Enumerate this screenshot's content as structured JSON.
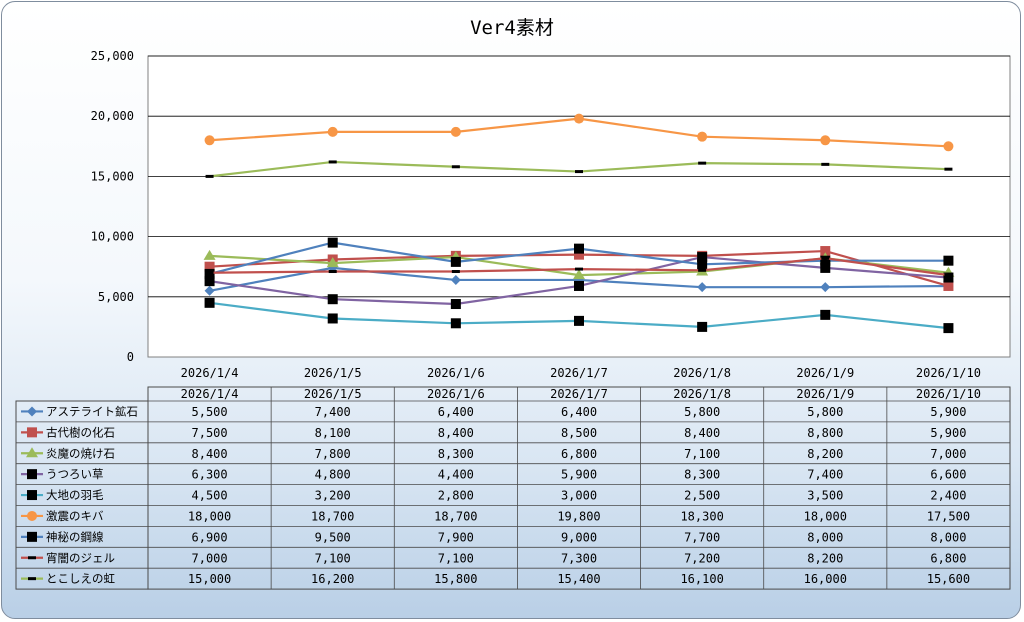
{
  "chart_data": {
    "type": "line",
    "title": "Ver4素材",
    "xlabel": "",
    "ylabel": "",
    "ylim": [
      0,
      25000
    ],
    "yticks": [
      "0",
      "5,000",
      "10,000",
      "15,000",
      "20,000",
      "25,000"
    ],
    "categories": [
      "2026/1/4",
      "2026/1/5",
      "2026/1/6",
      "2026/1/7",
      "2026/1/8",
      "2026/1/9",
      "2026/1/10"
    ],
    "grid": true,
    "legend": "data-table",
    "series": [
      {
        "name": "アステライト鉱石",
        "color": "#4f81bd",
        "marker": "diamond",
        "values": [
          5500,
          7400,
          6400,
          6400,
          5800,
          5800,
          5900
        ],
        "labels": [
          "5,500",
          "7,400",
          "6,400",
          "6,400",
          "5,800",
          "5,800",
          "5,900"
        ]
      },
      {
        "name": "古代樹の化石",
        "color": "#c0504d",
        "marker": "square",
        "values": [
          7500,
          8100,
          8400,
          8500,
          8400,
          8800,
          5900
        ],
        "labels": [
          "7,500",
          "8,100",
          "8,400",
          "8,500",
          "8,400",
          "8,800",
          "5,900"
        ]
      },
      {
        "name": "炎魔の焼け石",
        "color": "#9bbb59",
        "marker": "triangle",
        "values": [
          8400,
          7800,
          8300,
          6800,
          7100,
          8200,
          7000
        ],
        "labels": [
          "8,400",
          "7,800",
          "8,300",
          "6,800",
          "7,100",
          "8,200",
          "7,000"
        ]
      },
      {
        "name": "うつろい草",
        "color": "#8064a2",
        "marker": "square-black",
        "values": [
          6300,
          4800,
          4400,
          5900,
          8300,
          7400,
          6600
        ],
        "labels": [
          "6,300",
          "4,800",
          "4,400",
          "5,900",
          "8,300",
          "7,400",
          "6,600"
        ]
      },
      {
        "name": "大地の羽毛",
        "color": "#4bacc6",
        "marker": "square-black",
        "values": [
          4500,
          3200,
          2800,
          3000,
          2500,
          3500,
          2400
        ],
        "labels": [
          "4,500",
          "3,200",
          "2,800",
          "3,000",
          "2,500",
          "3,500",
          "2,400"
        ]
      },
      {
        "name": "激震のキバ",
        "color": "#f79646",
        "marker": "circle",
        "values": [
          18000,
          18700,
          18700,
          19800,
          18300,
          18000,
          17500
        ],
        "labels": [
          "18,000",
          "18,700",
          "18,700",
          "19,800",
          "18,300",
          "18,000",
          "17,500"
        ]
      },
      {
        "name": "神秘の鋼線",
        "color": "#4f81bd",
        "marker": "square-black",
        "values": [
          6900,
          9500,
          7900,
          9000,
          7700,
          8000,
          8000
        ],
        "labels": [
          "6,900",
          "9,500",
          "7,900",
          "9,000",
          "7,700",
          "8,000",
          "8,000"
        ]
      },
      {
        "name": "宵闇のジェル",
        "color": "#c0504d",
        "marker": "dash",
        "values": [
          7000,
          7100,
          7100,
          7300,
          7200,
          8200,
          6800
        ],
        "labels": [
          "7,000",
          "7,100",
          "7,100",
          "7,300",
          "7,200",
          "8,200",
          "6,800"
        ]
      },
      {
        "name": "とこしえの虹",
        "color": "#9bbb59",
        "marker": "dash",
        "values": [
          15000,
          16200,
          15800,
          15400,
          16100,
          16000,
          15600
        ],
        "labels": [
          "15,000",
          "16,200",
          "15,800",
          "15,400",
          "16,100",
          "16,000",
          "15,600"
        ]
      }
    ]
  }
}
